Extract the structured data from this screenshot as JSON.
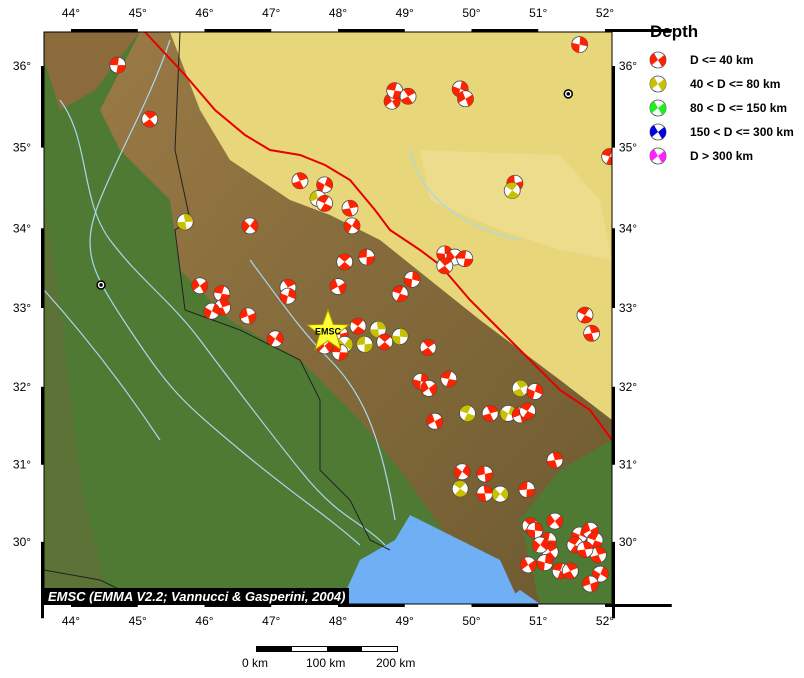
{
  "map": {
    "lon_range": [
      43.6,
      52.1
    ],
    "lat_range": [
      29.2,
      36.45
    ],
    "lon_labels": [
      "44°",
      "45°",
      "46°",
      "47°",
      "48°",
      "49°",
      "50°",
      "51°",
      "52°"
    ],
    "lon_values": [
      44,
      45,
      46,
      47,
      48,
      49,
      50,
      51,
      52
    ],
    "lat_labels": [
      "36°",
      "35°",
      "34°",
      "33°",
      "32°",
      "31°",
      "30°"
    ],
    "lat_values": [
      36,
      35,
      34,
      33,
      32,
      31,
      30
    ],
    "colors": {
      "lowland": "#4f7a34",
      "plateau": "#e8d67a",
      "mountain": "#8a6a3a",
      "sea": "#6fb0f5",
      "river": "#a8d8f0",
      "fault": "#e60000",
      "border": "#222222"
    },
    "epicenter": {
      "label": "EMSC",
      "lon": 47.85,
      "lat": 32.7,
      "color": "#ffff33"
    },
    "stations": [
      {
        "lon": 51.45,
        "lat": 35.66
      },
      {
        "lon": 44.45,
        "lat": 33.29
      }
    ],
    "events": [
      [
        44.7,
        36.01,
        "r"
      ],
      [
        45.18,
        35.35,
        "r"
      ],
      [
        51.62,
        36.26,
        "r"
      ],
      [
        48.81,
        35.57,
        "r"
      ],
      [
        48.85,
        35.7,
        "r"
      ],
      [
        49.05,
        35.63,
        "r"
      ],
      [
        49.83,
        35.72,
        "r"
      ],
      [
        49.91,
        35.6,
        "r"
      ],
      [
        52.07,
        34.89,
        "r"
      ],
      [
        47.43,
        34.59,
        "r"
      ],
      [
        47.8,
        34.54,
        "r"
      ],
      [
        47.7,
        34.37,
        "y"
      ],
      [
        47.8,
        34.31,
        "r"
      ],
      [
        48.18,
        34.25,
        "r"
      ],
      [
        48.21,
        34.03,
        "r"
      ],
      [
        50.65,
        34.56,
        "r"
      ],
      [
        50.61,
        34.47,
        "y"
      ],
      [
        45.71,
        34.08,
        "y"
      ],
      [
        46.68,
        34.03,
        "r"
      ],
      [
        48.43,
        33.64,
        "r"
      ],
      [
        48.1,
        33.58,
        "r"
      ],
      [
        49.6,
        33.68,
        "r"
      ],
      [
        49.75,
        33.64,
        "r"
      ],
      [
        49.9,
        33.62,
        "r"
      ],
      [
        49.6,
        33.53,
        "r"
      ],
      [
        49.11,
        33.36,
        "r"
      ],
      [
        45.93,
        33.28,
        "r"
      ],
      [
        46.26,
        33.18,
        "r"
      ],
      [
        47.25,
        33.26,
        "r"
      ],
      [
        47.25,
        33.15,
        "r"
      ],
      [
        48.0,
        33.27,
        "r"
      ],
      [
        48.93,
        33.18,
        "r"
      ],
      [
        46.27,
        33.01,
        "r"
      ],
      [
        46.11,
        32.96,
        "r"
      ],
      [
        46.65,
        32.9,
        "r"
      ],
      [
        51.7,
        32.91,
        "r"
      ],
      [
        51.8,
        32.68,
        "r"
      ],
      [
        47.06,
        32.61,
        "r"
      ],
      [
        48.03,
        32.67,
        "r"
      ],
      [
        48.3,
        32.77,
        "r"
      ],
      [
        48.6,
        32.73,
        "y"
      ],
      [
        48.1,
        32.54,
        "y"
      ],
      [
        48.4,
        32.54,
        "y"
      ],
      [
        48.7,
        32.57,
        "r"
      ],
      [
        48.93,
        32.64,
        "y"
      ],
      [
        47.8,
        32.52,
        "r"
      ],
      [
        48.03,
        32.44,
        "r"
      ],
      [
        49.35,
        32.5,
        "r"
      ],
      [
        49.24,
        32.07,
        "r"
      ],
      [
        49.36,
        31.98,
        "r"
      ],
      [
        49.66,
        32.1,
        "r"
      ],
      [
        50.73,
        31.98,
        "y"
      ],
      [
        50.95,
        31.94,
        "r"
      ],
      [
        49.45,
        31.56,
        "r"
      ],
      [
        49.94,
        31.66,
        "y"
      ],
      [
        50.28,
        31.66,
        "r"
      ],
      [
        50.55,
        31.66,
        "y"
      ],
      [
        50.73,
        31.64,
        "r"
      ],
      [
        50.84,
        31.69,
        "r"
      ],
      [
        51.25,
        31.06,
        "r"
      ],
      [
        49.86,
        30.91,
        "r"
      ],
      [
        50.2,
        30.88,
        "r"
      ],
      [
        49.83,
        30.69,
        "y"
      ],
      [
        50.2,
        30.63,
        "r"
      ],
      [
        50.43,
        30.62,
        "y"
      ],
      [
        50.83,
        30.68,
        "r"
      ],
      [
        50.88,
        30.21,
        "r"
      ],
      [
        50.95,
        30.15,
        "r"
      ],
      [
        51.25,
        30.27,
        "r"
      ],
      [
        51.15,
        30.02,
        "r"
      ],
      [
        51.18,
        29.87,
        "r"
      ],
      [
        51.1,
        29.73,
        "r"
      ],
      [
        50.85,
        29.7,
        "r"
      ],
      [
        51.33,
        29.62,
        "r"
      ],
      [
        51.48,
        29.62,
        "r"
      ],
      [
        51.62,
        30.09,
        "r"
      ],
      [
        51.78,
        30.15,
        "r"
      ],
      [
        51.85,
        30.02,
        "r"
      ],
      [
        51.9,
        29.83,
        "r"
      ],
      [
        51.93,
        29.58,
        "r"
      ],
      [
        51.78,
        29.45,
        "r"
      ],
      [
        51.55,
        29.96,
        "r"
      ],
      [
        51.7,
        29.9,
        "r"
      ],
      [
        51.03,
        29.96,
        "r"
      ]
    ]
  },
  "legend": {
    "title": "Depth",
    "items": [
      {
        "label": "D <= 40 km",
        "color": "#ff2200"
      },
      {
        "label": "40 < D <= 80 km",
        "color": "#c8c000"
      },
      {
        "label": "80 < D <= 150 km",
        "color": "#22ee22"
      },
      {
        "label": "150 < D <= 300 km",
        "color": "#0000dd"
      },
      {
        "label": "D > 300 km",
        "color": "#ff22ff"
      }
    ]
  },
  "credit": "EMSC (EMMA V2.2; Vannucci & Gasperini, 2004)",
  "scale_bar": {
    "labels": [
      "0 km",
      "100 km",
      "200 km"
    ]
  }
}
